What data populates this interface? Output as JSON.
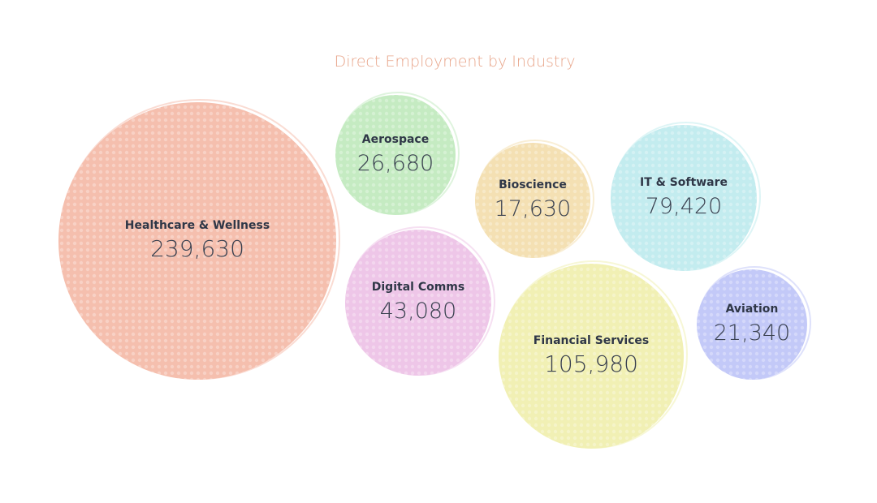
{
  "chart_data": {
    "type": "bubble",
    "title": "Direct Employment by Industry",
    "title_color": "#e8a58a",
    "items": [
      {
        "label": "Healthcare & Wellness",
        "value": 239630,
        "display": "239,630",
        "color": "#f5bfae"
      },
      {
        "label": "Aerospace",
        "value": 26680,
        "display": "26,680",
        "color": "#c5ebc2"
      },
      {
        "label": "Bioscience",
        "value": 17630,
        "display": "17,630",
        "color": "#f4e0b3"
      },
      {
        "label": "IT & Software",
        "value": 79420,
        "display": "79,420",
        "color": "#c3ecef"
      },
      {
        "label": "Digital Comms",
        "value": 43080,
        "display": "43,080",
        "color": "#eec6e8"
      },
      {
        "label": "Financial Services",
        "value": 105980,
        "display": "105,980",
        "color": "#f1f0b4"
      },
      {
        "label": "Aviation",
        "value": 21340,
        "display": "21,340",
        "color": "#c3c9f8"
      }
    ]
  }
}
